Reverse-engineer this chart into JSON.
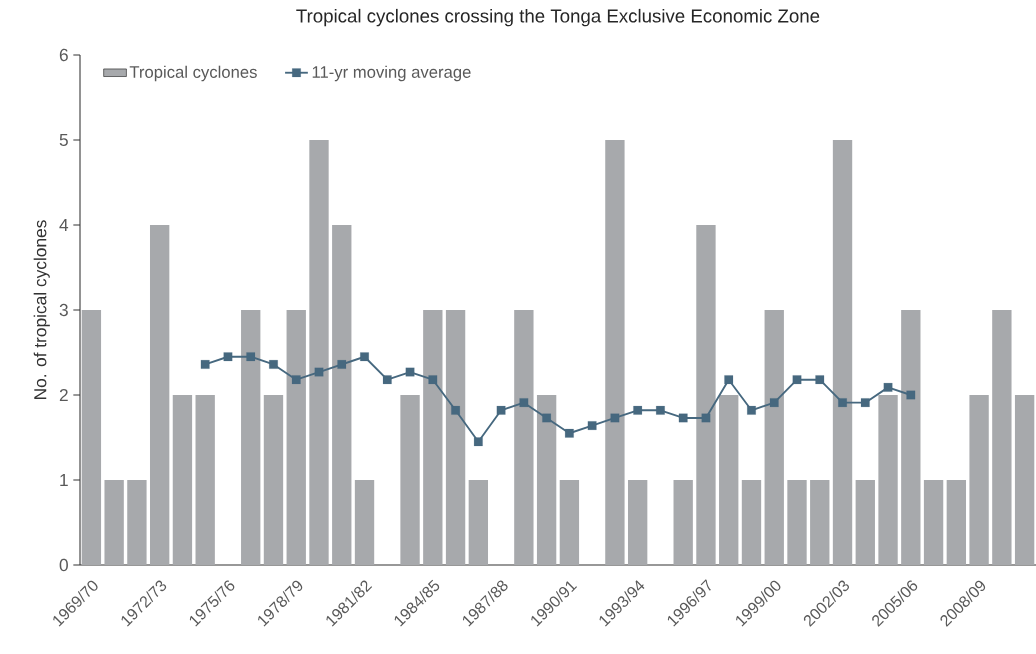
{
  "chart_data": {
    "type": "bar",
    "title": "Tropical cyclones crossing the Tonga Exclusive Economic Zone",
    "ylabel": "No. of tropical cyclones",
    "categories": [
      "1969/70",
      null,
      null,
      "1972/73",
      null,
      null,
      "1975/76",
      null,
      null,
      "1978/79",
      null,
      null,
      "1981/82",
      null,
      null,
      "1984/85",
      null,
      null,
      "1987/88",
      null,
      null,
      "1990/91",
      null,
      null,
      "1993/94",
      null,
      null,
      "1996/97",
      null,
      null,
      "1999/00",
      null,
      null,
      "2002/03",
      null,
      null,
      "2005/06",
      null,
      null,
      "2008/09",
      null,
      null
    ],
    "series": [
      {
        "name": "Tropical cyclones",
        "color": "#a7a9ac",
        "values": [
          3,
          1,
          1,
          4,
          2,
          2,
          0,
          3,
          2,
          3,
          5,
          4,
          1,
          0,
          2,
          3,
          3,
          1,
          0,
          3,
          2,
          1,
          0,
          5,
          1,
          0,
          1,
          4,
          2,
          1,
          3,
          1,
          1,
          5,
          1,
          2,
          3,
          1,
          1,
          2,
          3,
          2
        ]
      },
      {
        "name": "11-yr moving average",
        "type": "line",
        "color": "#46687f",
        "marker": "square",
        "values": [
          null,
          null,
          null,
          null,
          null,
          2.36,
          2.45,
          2.45,
          2.36,
          2.18,
          2.27,
          2.36,
          2.45,
          2.18,
          2.27,
          2.18,
          1.82,
          1.45,
          1.82,
          1.91,
          1.73,
          1.55,
          1.64,
          1.73,
          1.82,
          1.82,
          1.73,
          1.73,
          2.18,
          1.82,
          1.91,
          2.18,
          2.18,
          1.91,
          1.91,
          2.09,
          2.0,
          null,
          null,
          null,
          null,
          null
        ]
      }
    ],
    "ylim": [
      0,
      6
    ],
    "yticks": [
      0,
      1,
      2,
      3,
      4,
      5,
      6
    ],
    "legend": "top left",
    "grid": false
  }
}
